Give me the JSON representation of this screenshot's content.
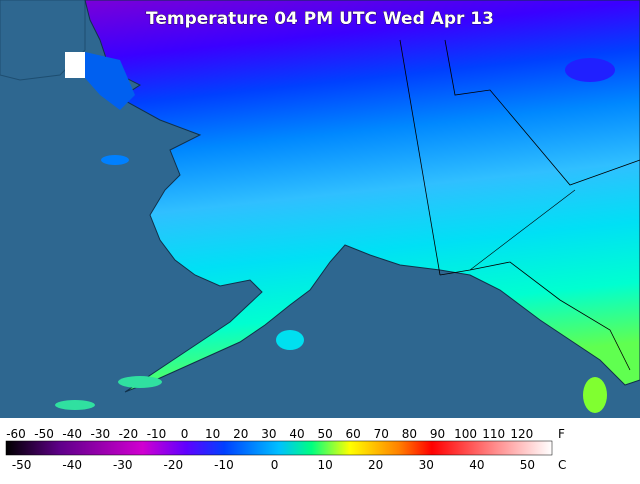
{
  "title": "Temperature 04 PM UTC Wed Apr 13",
  "legend": {
    "fahrenheit": {
      "unit": "F",
      "ticks": [
        -60,
        -50,
        -40,
        -30,
        -20,
        -10,
        0,
        10,
        20,
        30,
        40,
        50,
        60,
        70,
        80,
        90,
        100,
        110,
        120
      ]
    },
    "celsius": {
      "unit": "C",
      "ticks": [
        -50,
        -40,
        -30,
        -20,
        -10,
        0,
        10,
        20,
        30,
        40,
        50
      ]
    }
  }
}
